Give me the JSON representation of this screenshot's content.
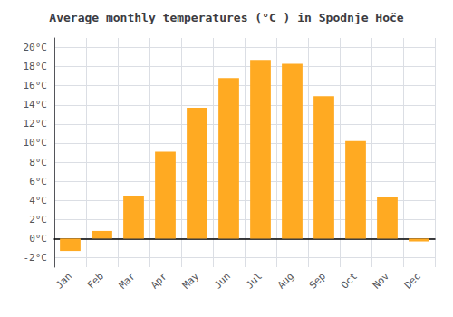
{
  "chart_data": {
    "type": "bar",
    "title": "Average monthly temperatures (°C ) in Spodnje Hoče",
    "categories": [
      "Jan",
      "Feb",
      "Mar",
      "Apr",
      "May",
      "Jun",
      "Jul",
      "Aug",
      "Sep",
      "Oct",
      "Nov",
      "Dec"
    ],
    "values": [
      -1.3,
      0.8,
      4.5,
      9.1,
      13.7,
      16.8,
      18.7,
      18.3,
      14.9,
      10.2,
      4.3,
      -0.3
    ],
    "color": "#FFAA22",
    "ylim": [
      -3,
      21
    ],
    "yticks": [
      {
        "value": -2,
        "label": "-2°C"
      },
      {
        "value": 0,
        "label": "0°C"
      },
      {
        "value": 2,
        "label": "2°C"
      },
      {
        "value": 4,
        "label": "4°C"
      },
      {
        "value": 6,
        "label": "6°C"
      },
      {
        "value": 8,
        "label": "8°C"
      },
      {
        "value": 10,
        "label": "10°C"
      },
      {
        "value": 12,
        "label": "12°C"
      },
      {
        "value": 14,
        "label": "14°C"
      },
      {
        "value": 16,
        "label": "16°C"
      },
      {
        "value": 18,
        "label": "18°C"
      },
      {
        "value": 20,
        "label": "20°C"
      }
    ],
    "grid": true
  }
}
